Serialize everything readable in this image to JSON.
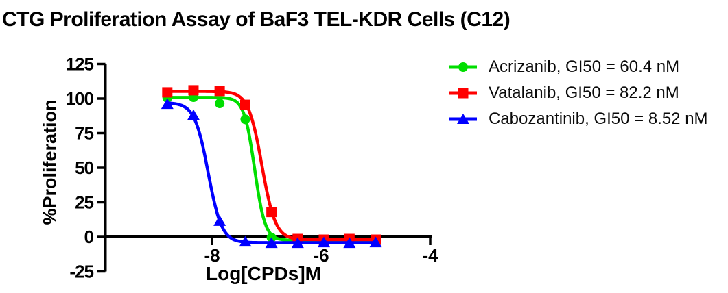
{
  "title": "CTG Proliferation Assay of BaF3 TEL-KDR Cells (C12)",
  "chart_data": {
    "type": "line",
    "subtype": "dose-response-sigmoid",
    "title": "CTG Proliferation Assay of BaF3 TEL-KDR Cells (C12)",
    "xlabel": "Log[CPDs]M",
    "ylabel": "%Proliferation",
    "xlim": [
      -10,
      -4
    ],
    "ylim": [
      -25,
      125
    ],
    "x_ticks": [
      -8,
      -6,
      -4
    ],
    "y_ticks": [
      125,
      100,
      75,
      50,
      25,
      0,
      -25
    ],
    "grid": false,
    "legend_position": "top-right",
    "axis_color": "#000000",
    "x": [
      -8.82,
      -8.34,
      -7.86,
      -7.39,
      -6.91,
      -6.43,
      -5.95,
      -5.48,
      -5.0
    ],
    "series": [
      {
        "name": "Acrizanib",
        "label": "Acrizanib, GI50 = 60.4 nM",
        "gi50_nM": 60.4,
        "color": "#00DE00",
        "marker": "circle",
        "values": [
          100.5,
          101,
          96.5,
          85,
          -0.5,
          -2.5,
          -2.5,
          -2.5,
          -2.5
        ],
        "fit": {
          "top": 100.8,
          "bottom": -2.5,
          "log_ic50": -7.219,
          "hill": 4.5
        }
      },
      {
        "name": "Vatalanib",
        "label": "Vatalanib, GI50 = 82.2 nM",
        "gi50_nM": 82.2,
        "color": "#FF0000",
        "marker": "square",
        "values": [
          104.5,
          106,
          105.5,
          95.5,
          18,
          -1.5,
          -2,
          -1.5,
          -2
        ],
        "fit": {
          "top": 105.2,
          "bottom": -2,
          "log_ic50": -7.085,
          "hill": 3.5
        }
      },
      {
        "name": "Cabozantinib",
        "label": "Cabozantinib, GI50 = 8.52 nM",
        "gi50_nM": 8.52,
        "color": "#0000FF",
        "marker": "triangle",
        "values": [
          96,
          88,
          11.5,
          -3.5,
          -4.5,
          -4.5,
          -4,
          -4.5,
          -4
        ],
        "fit": {
          "top": 97,
          "bottom": -4.2,
          "log_ic50": -8.07,
          "hill": 3.5
        }
      }
    ]
  }
}
